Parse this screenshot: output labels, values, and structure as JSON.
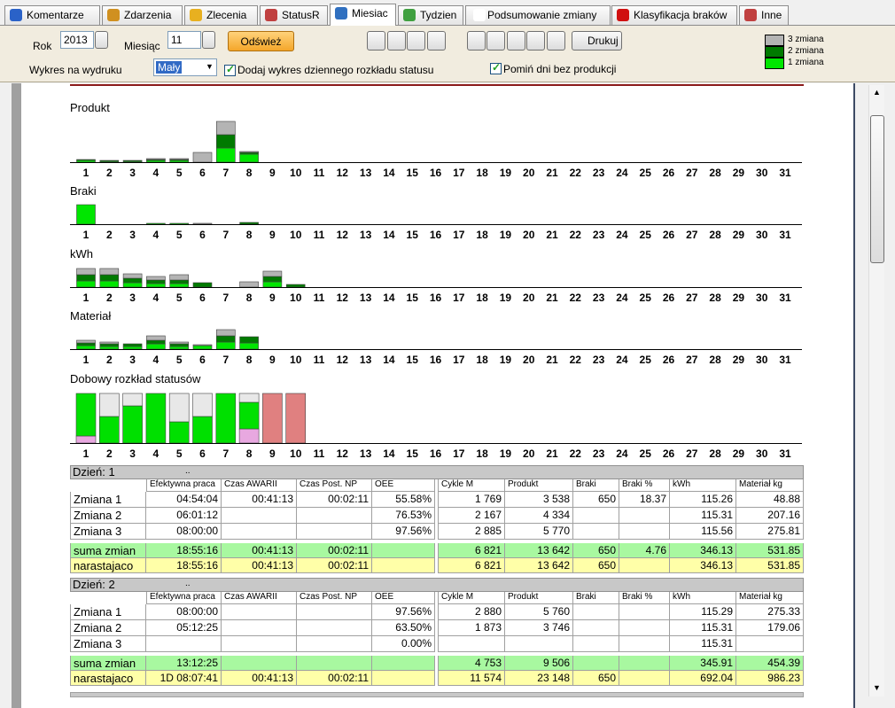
{
  "tabs": [
    {
      "label": "Komentarze"
    },
    {
      "label": "Zdarzenia"
    },
    {
      "label": "Zlecenia"
    },
    {
      "label": "StatusR"
    },
    {
      "label": "Miesiac",
      "active": true
    },
    {
      "label": "Tydzien"
    },
    {
      "label": "Podsumowanie zmiany"
    },
    {
      "label": "Klasyfikacja braków"
    },
    {
      "label": "Inne"
    }
  ],
  "toolbar": {
    "year_label": "Rok",
    "year": "2013",
    "month_label": "Miesiąc",
    "month": "11",
    "refresh": "Odśwież",
    "print": "Drukuj",
    "print_chart_label": "Wykres na wydruku",
    "print_chart_size": "Mały",
    "add_status_chart": {
      "label": "Dodaj wykres dziennego rozkładu statusu",
      "checked": true
    },
    "skip_days": {
      "label": "Pomiń dni bez produkcji",
      "checked": true
    }
  },
  "legend": [
    {
      "label": "3 zmiana",
      "color": "#b4b4b4"
    },
    {
      "label": "2 zmiana",
      "color": "#007a00"
    },
    {
      "label": "1 zmiana",
      "color": "#00e600"
    }
  ],
  "charts": {
    "days": [
      1,
      2,
      3,
      4,
      5,
      6,
      7,
      8,
      9,
      10,
      11,
      12,
      13,
      14,
      15,
      16,
      17,
      18,
      19,
      20,
      21,
      22,
      23,
      24,
      25,
      26,
      27,
      28,
      29,
      30,
      31
    ],
    "panels": [
      {
        "title": "Produkt",
        "series": [
          {
            "color": "#00e600",
            "values": [
              2,
              1,
              1,
              2,
              2,
              0,
              16,
              9,
              null,
              null,
              null,
              null,
              null,
              null,
              null,
              null,
              null,
              null,
              null,
              null,
              null,
              null,
              null,
              null,
              null,
              null,
              null,
              null,
              null,
              null,
              null
            ]
          },
          {
            "color": "#007a00",
            "values": [
              1,
              1,
              1,
              1,
              1,
              0,
              15,
              2,
              null,
              null,
              null,
              null,
              null,
              null,
              null,
              null,
              null,
              null,
              null,
              null,
              null,
              null,
              null,
              null,
              null,
              null,
              null,
              null,
              null,
              null,
              null
            ]
          },
          {
            "color": "#b4b4b4",
            "values": [
              0,
              0,
              0,
              1,
              1,
              11,
              15,
              1,
              null,
              null,
              null,
              null,
              null,
              null,
              null,
              null,
              null,
              null,
              null,
              null,
              null,
              null,
              null,
              null,
              null,
              null,
              null,
              null,
              null,
              null,
              null
            ]
          }
        ]
      },
      {
        "title": "Braki",
        "series": [
          {
            "color": "#00e600",
            "values": [
              22,
              0,
              0,
              1,
              1,
              0,
              0,
              0,
              null,
              null,
              null,
              null,
              null,
              null,
              null,
              null,
              null,
              null,
              null,
              null,
              null,
              null,
              null,
              null,
              null,
              null,
              null,
              null,
              null,
              null,
              null
            ]
          },
          {
            "color": "#007a00",
            "values": [
              0,
              0,
              0,
              0,
              0,
              0,
              0,
              2,
              null,
              null,
              null,
              null,
              null,
              null,
              null,
              null,
              null,
              null,
              null,
              null,
              null,
              null,
              null,
              null,
              null,
              null,
              null,
              null,
              null,
              null,
              null
            ]
          },
          {
            "color": "#b4b4b4",
            "values": [
              0,
              0,
              0,
              0,
              0,
              1,
              0,
              0,
              null,
              null,
              null,
              null,
              null,
              null,
              null,
              null,
              null,
              null,
              null,
              null,
              null,
              null,
              null,
              null,
              null,
              null,
              null,
              null,
              null,
              null,
              null
            ]
          }
        ]
      },
      {
        "title": "kWh",
        "series": [
          {
            "color": "#00e600",
            "values": [
              7,
              7,
              5,
              4,
              4,
              0,
              0,
              0,
              6,
              0,
              null,
              null,
              null,
              null,
              null,
              null,
              null,
              null,
              null,
              null,
              null,
              null,
              null,
              null,
              null,
              null,
              null,
              null,
              null,
              null,
              null
            ]
          },
          {
            "color": "#007a00",
            "values": [
              7,
              7,
              5,
              4,
              4,
              5,
              0,
              0,
              6,
              3,
              null,
              null,
              null,
              null,
              null,
              null,
              null,
              null,
              null,
              null,
              null,
              null,
              null,
              null,
              null,
              null,
              null,
              null,
              null,
              null,
              null
            ]
          },
          {
            "color": "#b4b4b4",
            "values": [
              7,
              7,
              5,
              4,
              6,
              0,
              0,
              6,
              6,
              0,
              null,
              null,
              null,
              null,
              null,
              null,
              null,
              null,
              null,
              null,
              null,
              null,
              null,
              null,
              null,
              null,
              null,
              null,
              null,
              null,
              null
            ]
          }
        ]
      },
      {
        "title": "Materiał",
        "series": [
          {
            "color": "#00e600",
            "values": [
              4,
              3,
              3,
              6,
              3,
              4,
              8,
              7,
              null,
              null,
              null,
              null,
              null,
              null,
              null,
              null,
              null,
              null,
              null,
              null,
              null,
              null,
              null,
              null,
              null,
              null,
              null,
              null,
              null,
              null,
              null
            ]
          },
          {
            "color": "#007a00",
            "values": [
              3,
              3,
              3,
              4,
              3,
              0,
              7,
              7,
              null,
              null,
              null,
              null,
              null,
              null,
              null,
              null,
              null,
              null,
              null,
              null,
              null,
              null,
              null,
              null,
              null,
              null,
              null,
              null,
              null,
              null,
              null
            ]
          },
          {
            "color": "#b4b4b4",
            "values": [
              3,
              2,
              0,
              5,
              2,
              1,
              7,
              0,
              null,
              null,
              null,
              null,
              null,
              null,
              null,
              null,
              null,
              null,
              null,
              null,
              null,
              null,
              null,
              null,
              null,
              null,
              null,
              null,
              null,
              null,
              null
            ]
          }
        ]
      },
      {
        "title": "Dobowy rozkład statusów",
        "series": [
          {
            "color": "#e8a8e0",
            "values": [
              8,
              0,
              0,
              0,
              0,
              0,
              0,
              16,
              0,
              0,
              null,
              null,
              null,
              null,
              null,
              null,
              null,
              null,
              null,
              null,
              null,
              null,
              null,
              null,
              null,
              null,
              null,
              null,
              null,
              null,
              null
            ]
          },
          {
            "color": "#00e000",
            "values": [
              48,
              30,
              42,
              56,
              24,
              30,
              56,
              30,
              0,
              0,
              null,
              null,
              null,
              null,
              null,
              null,
              null,
              null,
              null,
              null,
              null,
              null,
              null,
              null,
              null,
              null,
              null,
              null,
              null,
              null,
              null
            ]
          },
          {
            "color": "#e8e8e8",
            "values": [
              0,
              26,
              14,
              0,
              32,
              26,
              0,
              10,
              0,
              0,
              null,
              null,
              null,
              null,
              null,
              null,
              null,
              null,
              null,
              null,
              null,
              null,
              null,
              null,
              null,
              null,
              null,
              null,
              null,
              null,
              null
            ]
          },
          {
            "color": "#e08080",
            "values": [
              0,
              0,
              0,
              0,
              0,
              0,
              0,
              0,
              56,
              56,
              null,
              null,
              null,
              null,
              null,
              null,
              null,
              null,
              null,
              null,
              null,
              null,
              null,
              null,
              null,
              null,
              null,
              null,
              null,
              null,
              null
            ]
          }
        ]
      }
    ]
  },
  "columns": [
    "Efektywna praca",
    "Czas AWARII",
    "Czas Post. NP",
    "OEE",
    "Cykle M",
    "Produkt",
    "Braki",
    "Braki %",
    "kWh",
    "Materiał kg"
  ],
  "days": [
    {
      "title": "Dzień: 1",
      "note": "..",
      "rows": [
        {
          "label": "Zmiana 1",
          "cells": [
            "04:54:04",
            "00:41:13",
            "00:02:11",
            "55.58%",
            "1 769",
            "3 538",
            "650",
            "18.37",
            "115.26",
            "48.88"
          ]
        },
        {
          "label": "Zmiana 2",
          "cells": [
            "06:01:12",
            null,
            null,
            "76.53%",
            "2 167",
            "4 334",
            null,
            null,
            "115.31",
            "207.16"
          ]
        },
        {
          "label": "Zmiana 3",
          "cells": [
            "08:00:00",
            null,
            null,
            "97.56%",
            "2 885",
            "5 770",
            null,
            null,
            "115.56",
            "275.81"
          ]
        }
      ],
      "totals": [
        {
          "label": "suma zmian",
          "cells": [
            "18:55:16",
            "00:41:13",
            "00:02:11",
            null,
            "6 821",
            "13 642",
            "650",
            "4.76",
            "346.13",
            "531.85"
          ]
        },
        {
          "label": "narastajaco",
          "cells": [
            "18:55:16",
            "00:41:13",
            "00:02:11",
            null,
            "6 821",
            "13 642",
            "650",
            null,
            "346.13",
            "531.85"
          ]
        }
      ]
    },
    {
      "title": "Dzień: 2",
      "note": "..",
      "rows": [
        {
          "label": "Zmiana 1",
          "cells": [
            "08:00:00",
            null,
            null,
            "97.56%",
            "2 880",
            "5 760",
            null,
            null,
            "115.29",
            "275.33"
          ]
        },
        {
          "label": "Zmiana 2",
          "cells": [
            "05:12:25",
            null,
            null,
            "63.50%",
            "1 873",
            "3 746",
            null,
            null,
            "115.31",
            "179.06"
          ]
        },
        {
          "label": "Zmiana 3",
          "cells": [
            null,
            null,
            null,
            "0.00%",
            null,
            null,
            null,
            null,
            "115.31",
            null
          ]
        }
      ],
      "totals": [
        {
          "label": "suma zmian",
          "cells": [
            "13:12:25",
            null,
            null,
            null,
            "4 753",
            "9 506",
            null,
            null,
            "345.91",
            "454.39"
          ]
        },
        {
          "label": "narastajaco",
          "cells": [
            "1D 08:07:41",
            "00:41:13",
            "00:02:11",
            null,
            "11 574",
            "23 148",
            "650",
            null,
            "692.04",
            "986.23"
          ]
        }
      ]
    }
  ]
}
